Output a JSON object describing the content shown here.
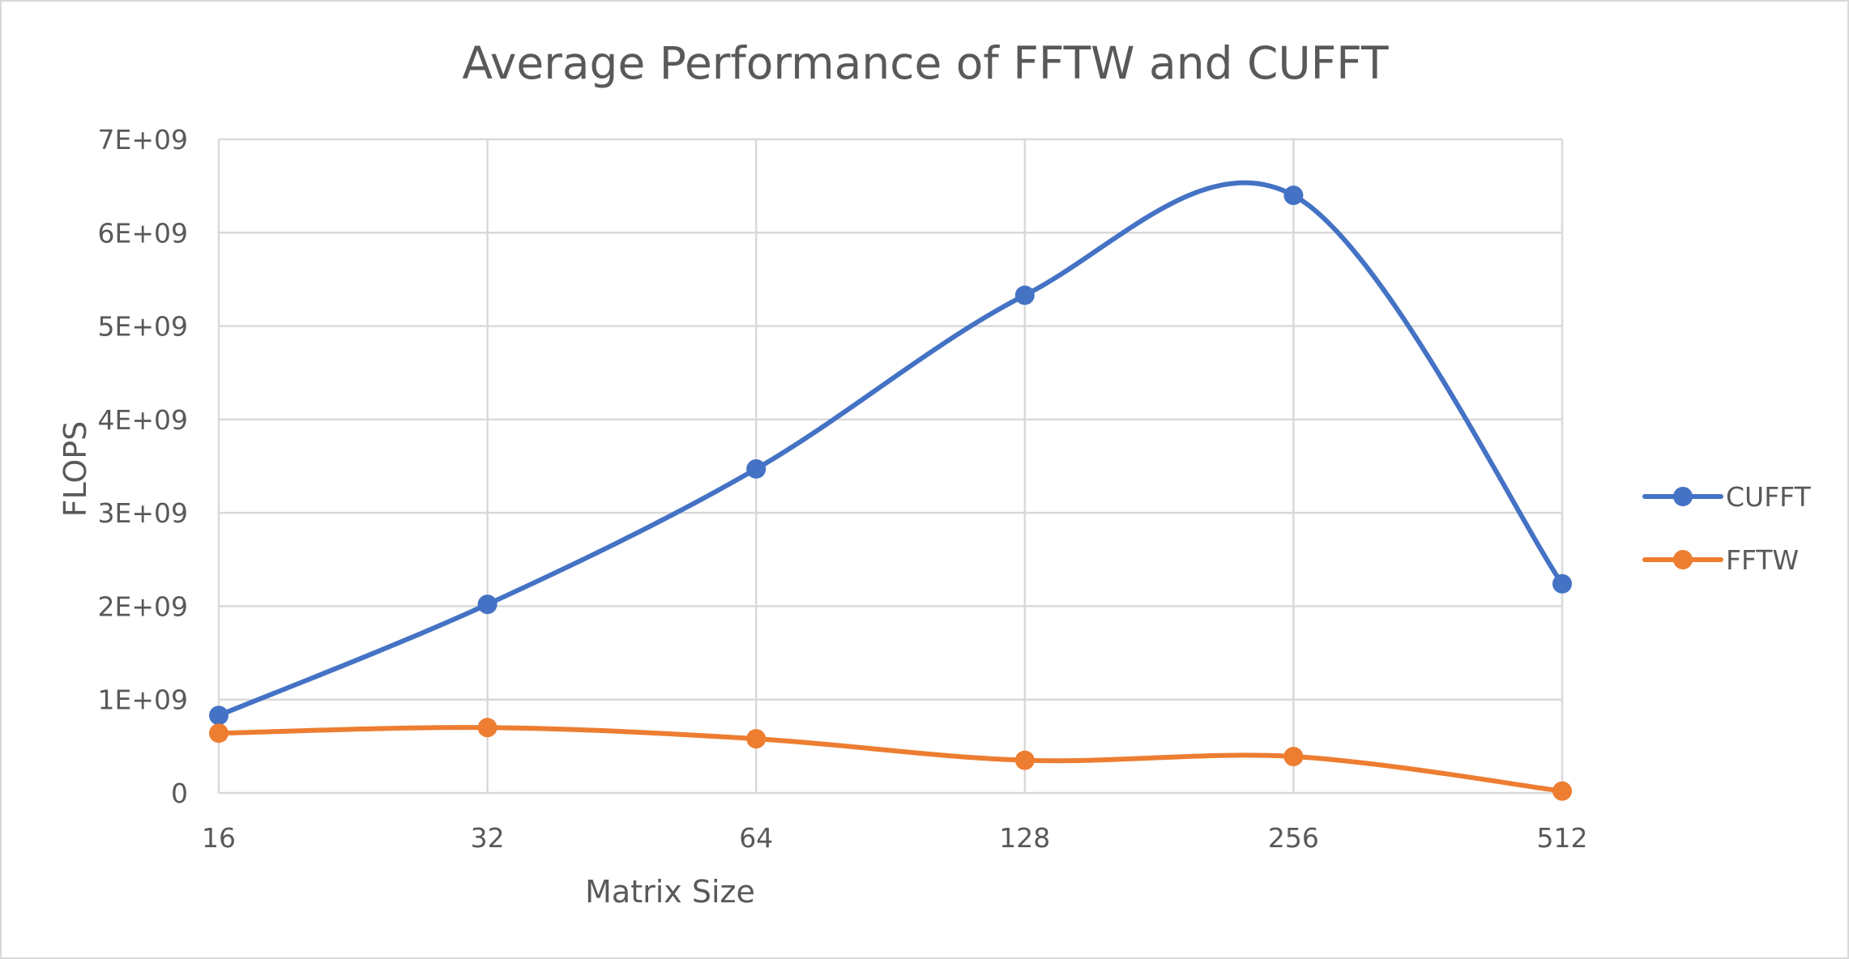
{
  "chart_data": {
    "type": "line",
    "title": "Average Performance of FFTW and CUFFT",
    "xlabel": "Matrix Size",
    "ylabel": "FLOPS",
    "categories": [
      "16",
      "32",
      "64",
      "128",
      "256",
      "512"
    ],
    "series": [
      {
        "name": "CUFFT",
        "color": "#4472C4",
        "values": [
          830000000,
          2020000000,
          3470000000,
          5330000000,
          6400000000,
          2240000000
        ]
      },
      {
        "name": "FFTW",
        "color": "#ED7D31",
        "values": [
          640000000,
          700000000,
          580000000,
          350000000,
          390000000,
          20000000
        ]
      }
    ],
    "ylim": [
      0,
      7000000000
    ],
    "yticks": [
      {
        "value": 0,
        "label": "0"
      },
      {
        "value": 1000000000,
        "label": "1E+09"
      },
      {
        "value": 2000000000,
        "label": "2E+09"
      },
      {
        "value": 3000000000,
        "label": "3E+09"
      },
      {
        "value": 4000000000,
        "label": "4E+09"
      },
      {
        "value": 5000000000,
        "label": "5E+09"
      },
      {
        "value": 6000000000,
        "label": "6E+09"
      },
      {
        "value": 7000000000,
        "label": "7E+09"
      }
    ],
    "grid": true,
    "smooth": true,
    "legend_position": "right"
  }
}
